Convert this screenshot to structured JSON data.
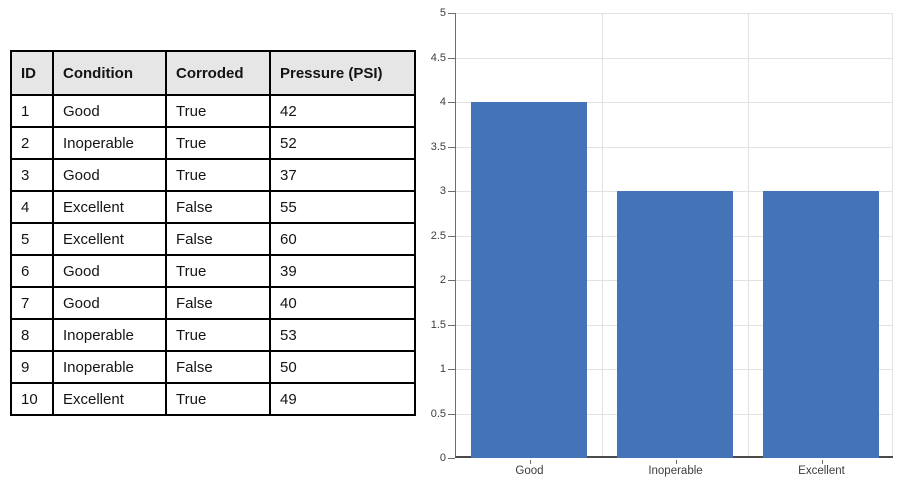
{
  "table": {
    "columns": [
      "ID",
      "Condition",
      "Corroded",
      "Pressure (PSI)"
    ],
    "header_bg": "#e7e6e6",
    "rows": [
      [
        "1",
        "Good",
        "True",
        "42"
      ],
      [
        "2",
        "Inoperable",
        "True",
        "52"
      ],
      [
        "3",
        "Good",
        "True",
        "37"
      ],
      [
        "4",
        "Excellent",
        "False",
        "55"
      ],
      [
        "5",
        "Excellent",
        "False",
        "60"
      ],
      [
        "6",
        "Good",
        "True",
        "39"
      ],
      [
        "7",
        "Good",
        "False",
        "40"
      ],
      [
        "8",
        "Inoperable",
        "True",
        "53"
      ],
      [
        "9",
        "Inoperable",
        "False",
        "50"
      ],
      [
        "10",
        "Excellent",
        "True",
        "49"
      ]
    ]
  },
  "chart_data": {
    "type": "bar",
    "title": "",
    "xlabel": "",
    "ylabel": "",
    "categories": [
      "Good",
      "Inoperable",
      "Excellent"
    ],
    "values": [
      4,
      3,
      3
    ],
    "ylim": [
      0,
      5
    ],
    "yticks": [
      "0",
      "0.5",
      "1",
      "1.5",
      "2",
      "2.5",
      "3",
      "3.5",
      "4",
      "4.5",
      "5"
    ],
    "grid": "horizontal and vertical, light gray",
    "legend": "none",
    "bar_color": "#4473B8",
    "gridline_color": "#e2e2e2",
    "axis_color": "#6e6e6e",
    "axis_bottom_color": "#4a4a4a",
    "label_color": "#3d3d3d"
  }
}
